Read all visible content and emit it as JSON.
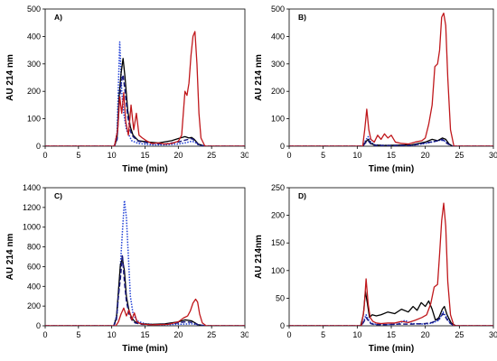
{
  "chart_data": [
    {
      "type": "line",
      "panel_label": "A)",
      "xlabel": "Time (min)",
      "ylabel": "AU 214 nm",
      "xlim": [
        0,
        30
      ],
      "ylim": [
        0,
        500
      ],
      "xticks": [
        0,
        5,
        10,
        15,
        20,
        25,
        30
      ],
      "yticks": [
        0,
        100,
        200,
        300,
        400,
        500
      ],
      "grid": false,
      "series": [
        {
          "color": "#1f3fd6",
          "style": "dotted",
          "x": [
            0,
            10.4,
            10.8,
            11.0,
            11.2,
            11.5,
            11.8,
            12.2,
            12.6,
            13.0,
            14.0,
            16.0,
            18.0,
            20.0,
            21.0,
            22.0,
            22.5,
            23.0,
            24.0,
            30
          ],
          "y": [
            0,
            0,
            50,
            220,
            380,
            200,
            120,
            60,
            40,
            20,
            10,
            5,
            5,
            8,
            12,
            18,
            15,
            5,
            0,
            0
          ]
        },
        {
          "color": "#000000",
          "style": "solid",
          "x": [
            0,
            10.4,
            10.8,
            11.1,
            11.4,
            11.7,
            12.0,
            12.4,
            12.8,
            13.2,
            14.0,
            15.5,
            17.0,
            19.0,
            20.0,
            21.0,
            21.6,
            22.0,
            22.4,
            23.0,
            24.0,
            30
          ],
          "y": [
            0,
            0,
            30,
            180,
            265,
            320,
            250,
            130,
            70,
            40,
            20,
            15,
            12,
            20,
            28,
            35,
            30,
            32,
            25,
            8,
            0,
            0
          ]
        },
        {
          "color": "#1a1a80",
          "style": "dashed",
          "x": [
            0,
            10.4,
            10.8,
            11.1,
            11.4,
            11.7,
            12.0,
            12.4,
            12.8,
            13.2,
            14.0,
            16.0,
            18.0,
            20.0,
            21.0,
            22.0,
            22.5,
            23.0,
            24.0,
            30
          ],
          "y": [
            0,
            0,
            25,
            150,
            230,
            260,
            200,
            110,
            55,
            35,
            18,
            10,
            8,
            15,
            22,
            28,
            20,
            6,
            0,
            0
          ]
        },
        {
          "color": "#c0181c",
          "style": "solid",
          "x": [
            0,
            10.4,
            10.9,
            11.2,
            11.5,
            11.8,
            12.1,
            12.5,
            12.9,
            13.3,
            13.7,
            14.1,
            14.6,
            15.2,
            16.0,
            17.0,
            18.0,
            19.0,
            20.0,
            20.5,
            21.0,
            21.3,
            21.6,
            21.9,
            22.2,
            22.5,
            22.8,
            23.1,
            23.4,
            24.0,
            30
          ],
          "y": [
            0,
            0,
            60,
            180,
            120,
            195,
            90,
            40,
            150,
            60,
            120,
            40,
            30,
            20,
            10,
            12,
            8,
            10,
            18,
            40,
            200,
            185,
            230,
            330,
            400,
            418,
            300,
            120,
            30,
            0,
            0
          ]
        }
      ]
    },
    {
      "type": "line",
      "panel_label": "B)",
      "xlabel": "Time (min)",
      "ylabel": "AU 214 nm",
      "xlim": [
        0,
        30
      ],
      "ylim": [
        0,
        500
      ],
      "xticks": [
        0,
        5,
        10,
        15,
        20,
        25,
        30
      ],
      "yticks": [
        0,
        100,
        200,
        300,
        400,
        500
      ],
      "grid": false,
      "series": [
        {
          "color": "#1f3fd6",
          "style": "dotted",
          "x": [
            0,
            10.8,
            11.2,
            11.6,
            12.0,
            12.6,
            14.0,
            18.0,
            20.0,
            21.5,
            22.2,
            22.8,
            23.4,
            24.0,
            30
          ],
          "y": [
            0,
            0,
            20,
            35,
            15,
            5,
            3,
            3,
            10,
            18,
            22,
            20,
            8,
            0,
            0
          ]
        },
        {
          "color": "#000000",
          "style": "solid",
          "x": [
            0,
            10.8,
            11.2,
            11.6,
            12.0,
            12.6,
            14.0,
            18.0,
            20.0,
            21.0,
            21.8,
            22.5,
            23.0,
            23.5,
            24.0,
            30
          ],
          "y": [
            0,
            0,
            15,
            25,
            10,
            4,
            3,
            5,
            15,
            25,
            20,
            30,
            25,
            8,
            0,
            0
          ]
        },
        {
          "color": "#1a1a80",
          "style": "dashed",
          "x": [
            0,
            10.8,
            11.2,
            11.6,
            12.0,
            12.6,
            14.0,
            18.0,
            20.0,
            21.5,
            22.5,
            23.2,
            24.0,
            30
          ],
          "y": [
            0,
            0,
            12,
            20,
            8,
            3,
            2,
            3,
            12,
            18,
            25,
            10,
            0,
            0
          ]
        },
        {
          "color": "#c0181c",
          "style": "solid",
          "x": [
            0,
            10.8,
            11.1,
            11.4,
            11.7,
            12.0,
            12.5,
            13.0,
            13.5,
            14.0,
            14.5,
            15.0,
            15.6,
            16.5,
            17.5,
            18.5,
            19.5,
            20.0,
            20.5,
            21.0,
            21.4,
            21.8,
            22.1,
            22.4,
            22.7,
            23.0,
            23.3,
            23.7,
            24.2,
            30
          ],
          "y": [
            0,
            0,
            60,
            135,
            60,
            25,
            15,
            40,
            25,
            45,
            30,
            40,
            15,
            10,
            8,
            15,
            20,
            30,
            80,
            150,
            290,
            300,
            350,
            470,
            485,
            440,
            250,
            60,
            0,
            0
          ]
        }
      ]
    },
    {
      "type": "line",
      "panel_label": "C)",
      "xlabel": "Time (min)",
      "ylabel": "AU 214 nm",
      "xlim": [
        0,
        30
      ],
      "ylim": [
        0,
        1400
      ],
      "xticks": [
        0,
        5,
        10,
        15,
        20,
        25,
        30
      ],
      "yticks": [
        0,
        200,
        400,
        600,
        800,
        1000,
        1200,
        1400
      ],
      "grid": false,
      "series": [
        {
          "color": "#1f3fd6",
          "style": "dotted",
          "x": [
            0,
            10.3,
            10.8,
            11.2,
            11.6,
            11.9,
            12.2,
            12.5,
            12.8,
            13.2,
            13.8,
            15.0,
            17.0,
            20.0,
            22.0,
            23.0,
            24.0,
            30
          ],
          "y": [
            0,
            0,
            120,
            500,
            950,
            1270,
            1100,
            700,
            300,
            120,
            50,
            20,
            10,
            15,
            20,
            12,
            0,
            0
          ]
        },
        {
          "color": "#000000",
          "style": "solid",
          "x": [
            0,
            10.3,
            10.7,
            11.0,
            11.3,
            11.6,
            11.9,
            12.2,
            12.6,
            13.0,
            13.5,
            14.5,
            16.0,
            18.0,
            20.0,
            21.0,
            22.0,
            22.5,
            23.0,
            24.0,
            30
          ],
          "y": [
            0,
            0,
            80,
            350,
            620,
            680,
            560,
            300,
            150,
            80,
            40,
            20,
            15,
            20,
            40,
            60,
            50,
            30,
            10,
            0,
            0
          ]
        },
        {
          "color": "#1a1a80",
          "style": "dashed",
          "x": [
            0,
            10.3,
            10.7,
            11.0,
            11.3,
            11.6,
            11.9,
            12.2,
            12.6,
            13.0,
            13.5,
            14.5,
            16.0,
            18.0,
            20.0,
            21.0,
            22.0,
            23.0,
            24.0,
            30
          ],
          "y": [
            0,
            0,
            60,
            300,
            480,
            720,
            450,
            250,
            120,
            60,
            30,
            15,
            10,
            15,
            30,
            40,
            35,
            10,
            0,
            0
          ]
        },
        {
          "color": "#c0181c",
          "style": "solid",
          "x": [
            0,
            10.6,
            11.0,
            11.4,
            11.8,
            12.2,
            12.6,
            13.0,
            13.4,
            13.8,
            14.4,
            15.0,
            16.0,
            17.0,
            18.5,
            20.0,
            20.8,
            21.4,
            21.8,
            22.2,
            22.6,
            22.9,
            23.2,
            23.6,
            24.2,
            30
          ],
          "y": [
            0,
            0,
            40,
            120,
            180,
            100,
            160,
            60,
            130,
            40,
            20,
            15,
            10,
            12,
            15,
            40,
            80,
            100,
            150,
            230,
            270,
            240,
            120,
            30,
            0,
            0
          ]
        }
      ]
    },
    {
      "type": "line",
      "panel_label": "D)",
      "xlabel": "Time (min)",
      "ylabel": "AU 214nm",
      "xlim": [
        0,
        30
      ],
      "ylim": [
        0,
        250
      ],
      "xticks": [
        0,
        5,
        10,
        15,
        20,
        25,
        30
      ],
      "yticks": [
        0,
        50,
        100,
        150,
        200,
        250
      ],
      "grid": false,
      "series": [
        {
          "color": "#1f3fd6",
          "style": "dotted",
          "x": [
            0,
            10.6,
            11.0,
            11.3,
            11.6,
            12.0,
            12.6,
            14.0,
            16.0,
            17.0,
            18.0,
            20.0,
            21.0,
            22.0,
            22.6,
            23.0,
            23.5,
            24.2,
            30
          ],
          "y": [
            0,
            0,
            10,
            20,
            12,
            5,
            3,
            2,
            3,
            10,
            4,
            3,
            5,
            10,
            25,
            18,
            8,
            0,
            0
          ]
        },
        {
          "color": "#000000",
          "style": "solid",
          "x": [
            0,
            10.5,
            10.9,
            11.2,
            11.5,
            11.8,
            12.2,
            12.8,
            13.5,
            14.5,
            15.5,
            16.5,
            17.5,
            18.2,
            18.8,
            19.4,
            20.0,
            20.5,
            21.0,
            21.5,
            22.0,
            22.5,
            22.8,
            23.2,
            23.8,
            24.5,
            30
          ],
          "y": [
            0,
            0,
            20,
            62,
            40,
            15,
            20,
            18,
            20,
            25,
            22,
            30,
            25,
            35,
            28,
            42,
            35,
            45,
            30,
            10,
            15,
            30,
            35,
            20,
            5,
            0,
            0
          ]
        },
        {
          "color": "#1a1a80",
          "style": "dashed",
          "x": [
            0,
            10.6,
            11.0,
            11.3,
            11.6,
            12.0,
            12.6,
            14.0,
            16.0,
            18.0,
            20.0,
            21.0,
            22.0,
            22.6,
            23.0,
            23.5,
            24.2,
            30
          ],
          "y": [
            0,
            0,
            8,
            15,
            10,
            4,
            2,
            2,
            3,
            3,
            4,
            6,
            12,
            22,
            15,
            6,
            0,
            0
          ]
        },
        {
          "color": "#c0181c",
          "style": "solid",
          "x": [
            0,
            10.6,
            11.0,
            11.3,
            11.6,
            11.9,
            12.3,
            12.8,
            13.5,
            14.5,
            15.5,
            16.5,
            17.5,
            18.5,
            19.5,
            20.2,
            20.8,
            21.3,
            21.8,
            22.1,
            22.4,
            22.7,
            23.0,
            23.3,
            23.7,
            24.2,
            30
          ],
          "y": [
            0,
            0,
            30,
            85,
            40,
            15,
            8,
            5,
            4,
            5,
            5,
            8,
            6,
            10,
            15,
            20,
            40,
            70,
            75,
            130,
            190,
            222,
            180,
            80,
            20,
            0,
            0
          ]
        }
      ]
    }
  ]
}
